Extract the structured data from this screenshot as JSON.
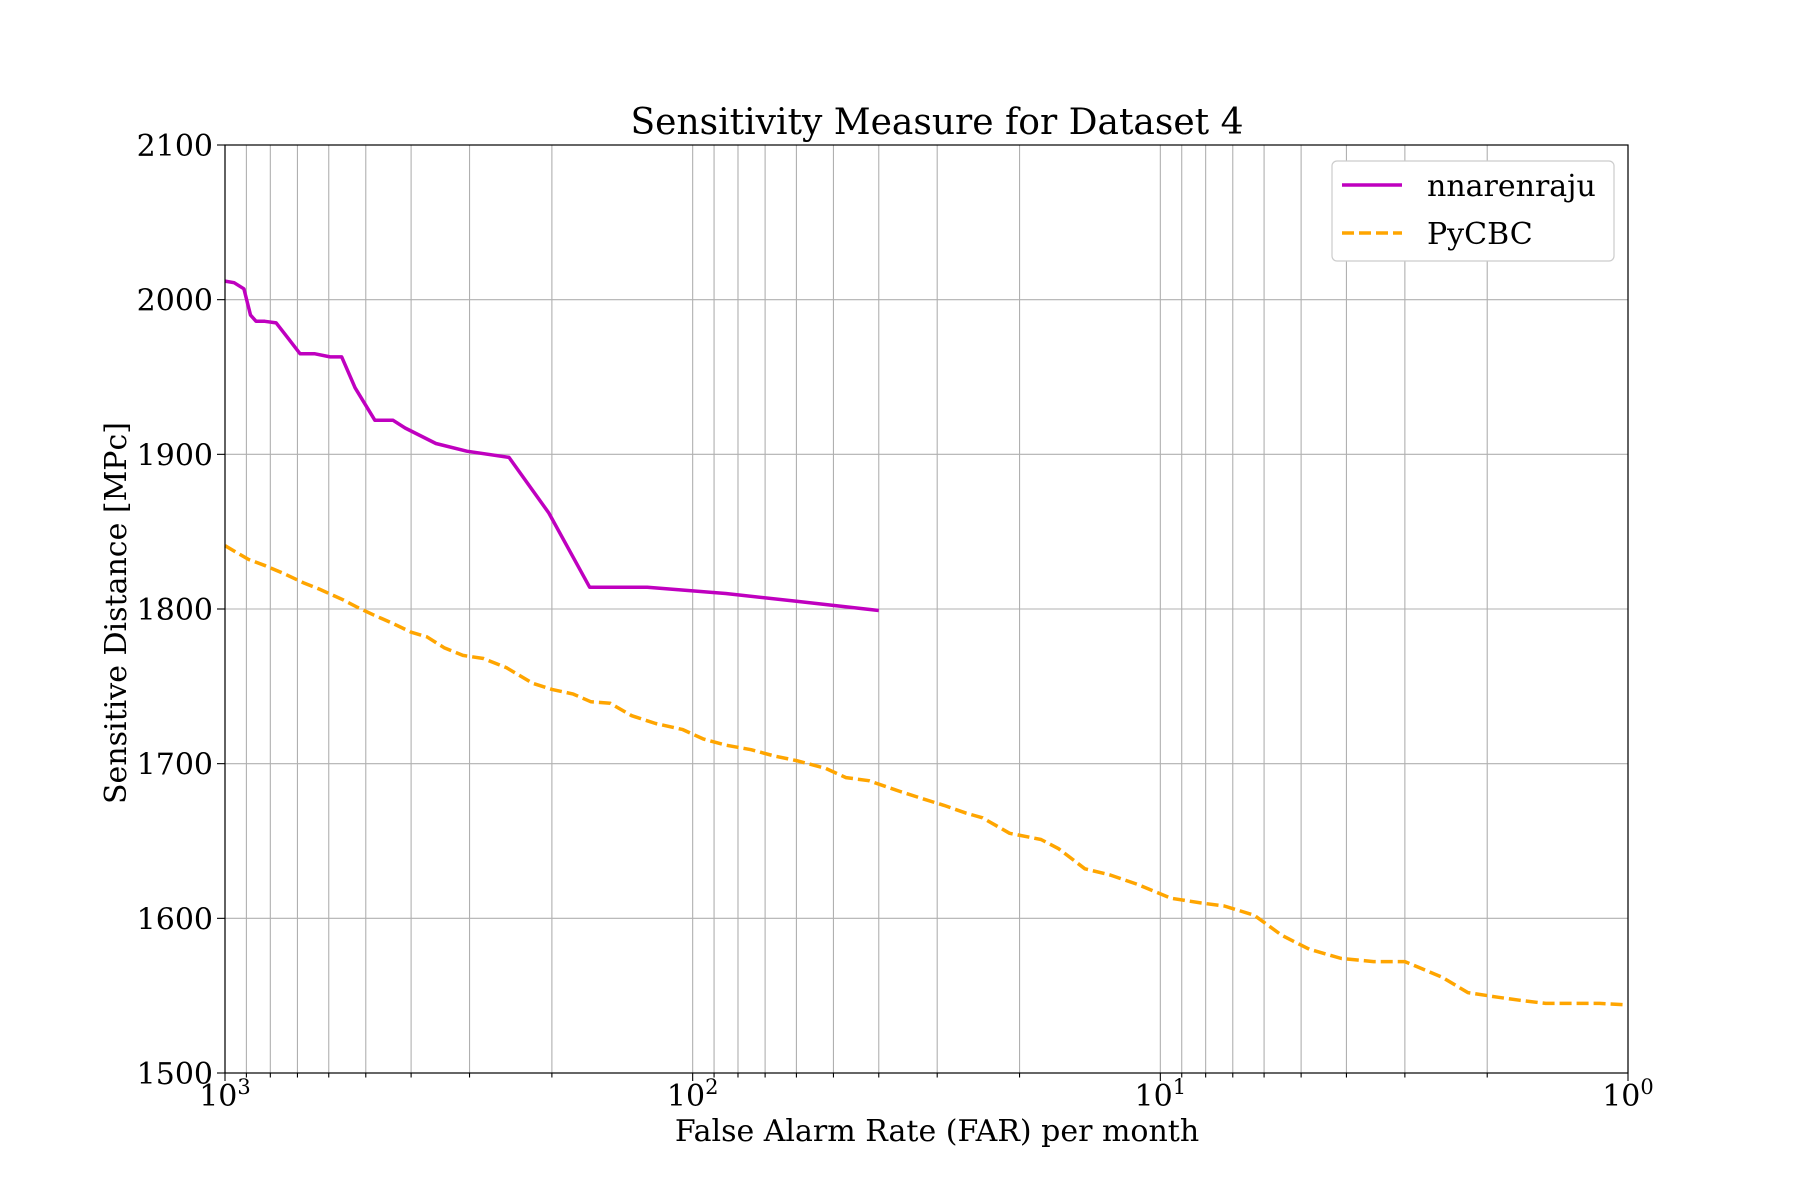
{
  "chart_data": {
    "type": "line",
    "title": "Sensitivity Measure for Dataset 4",
    "xlabel": "False Alarm Rate (FAR) per month",
    "ylabel": "Sensitive Distance [MPc]",
    "xscale": "log",
    "x_inverted": true,
    "xlim": [
      1000,
      1
    ],
    "ylim": [
      1500,
      2100
    ],
    "grid": true,
    "grid_color": "#b0b0b0",
    "legend_position": "top-right",
    "x_ticks": [
      {
        "value": 1000,
        "base": "10",
        "exp": "3"
      },
      {
        "value": 100,
        "base": "10",
        "exp": "2"
      },
      {
        "value": 10,
        "base": "10",
        "exp": "1"
      },
      {
        "value": 1,
        "base": "10",
        "exp": "0"
      }
    ],
    "y_ticks": [
      {
        "value": 1500,
        "label": "1500"
      },
      {
        "value": 1600,
        "label": "1600"
      },
      {
        "value": 1700,
        "label": "1700"
      },
      {
        "value": 1800,
        "label": "1800"
      },
      {
        "value": 1900,
        "label": "1900"
      },
      {
        "value": 2000,
        "label": "2000"
      },
      {
        "value": 2100,
        "label": "2100"
      }
    ],
    "series": [
      {
        "name": "nnarenraju",
        "color": "#bf00bf",
        "style": "solid",
        "x": [
          1000,
          956,
          911,
          882,
          858,
          822,
          777,
          737,
          691,
          642,
          596,
          563,
          527,
          478,
          437,
          412,
          354,
          304,
          247,
          203,
          166,
          125,
          85,
          60,
          40
        ],
        "y": [
          2012,
          2011,
          2007,
          1990,
          1986,
          1986,
          1985,
          1976,
          1965,
          1965,
          1963,
          1963,
          1943,
          1922,
          1922,
          1917,
          1907,
          1902,
          1898,
          1862,
          1814,
          1814,
          1810,
          1805,
          1799
        ]
      },
      {
        "name": "PyCBC",
        "color": "#ffa500",
        "style": "dashed",
        "x": [
          1000,
          950,
          890,
          820,
          750,
          680,
          630,
          560,
          520,
          480,
          440,
          400,
          370,
          340,
          310,
          280,
          250,
          220,
          200,
          180,
          165,
          150,
          135,
          120,
          105,
          95,
          85,
          75,
          67,
          60,
          52,
          47,
          42,
          36,
          32,
          29,
          26,
          24,
          21,
          18,
          16.5,
          14.5,
          12.8,
          11.2,
          9.5,
          8.2,
          7.3,
          6.3,
          5.5,
          4.8,
          4.1,
          3.5,
          3.0,
          2.5,
          2.2,
          1.9,
          1.7,
          1.5,
          1.3,
          1.15,
          1.0
        ],
        "y": [
          1841,
          1837,
          1832,
          1828,
          1823,
          1817,
          1813,
          1806,
          1801,
          1796,
          1791,
          1785,
          1782,
          1775,
          1770,
          1768,
          1762,
          1752,
          1748,
          1745,
          1740,
          1739,
          1731,
          1726,
          1722,
          1716,
          1712,
          1709,
          1705,
          1702,
          1697,
          1691,
          1689,
          1682,
          1677,
          1673,
          1668,
          1665,
          1655,
          1651,
          1645,
          1632,
          1628,
          1622,
          1613,
          1610,
          1608,
          1602,
          1589,
          1580,
          1574,
          1572,
          1572,
          1562,
          1552,
          1549,
          1547,
          1545,
          1545,
          1545,
          1544
        ]
      }
    ]
  }
}
